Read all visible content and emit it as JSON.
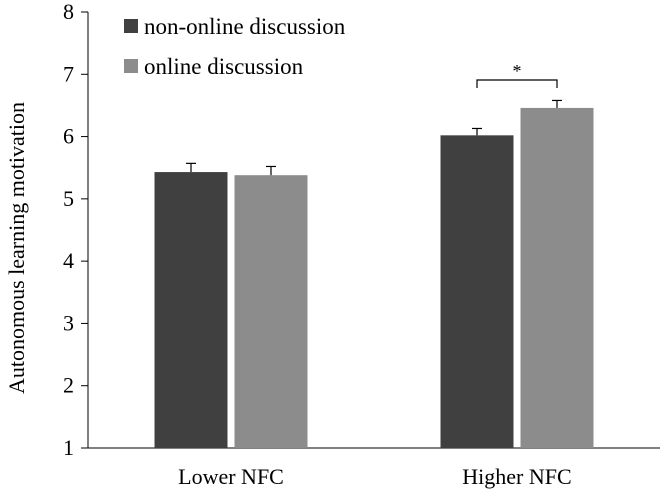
{
  "chart_data": {
    "type": "bar",
    "ylabel": "Autonomous learning motivation",
    "ylim": [
      1,
      8
    ],
    "yticks": [
      1,
      2,
      3,
      4,
      5,
      6,
      7,
      8
    ],
    "categories": [
      "Lower NFC",
      "Higher NFC"
    ],
    "series": [
      {
        "name": "non-online discussion",
        "color": "#404040",
        "values": [
          5.43,
          6.02
        ],
        "errors": [
          0.14,
          0.11
        ]
      },
      {
        "name": "online discussion",
        "color": "#8c8c8c",
        "values": [
          5.38,
          6.46
        ],
        "errors": [
          0.14,
          0.12
        ]
      }
    ],
    "legend": "top-left",
    "grid": false,
    "annotations": [
      {
        "text": "*",
        "category": "Higher NFC",
        "between_series": [
          0,
          1
        ]
      }
    ]
  }
}
